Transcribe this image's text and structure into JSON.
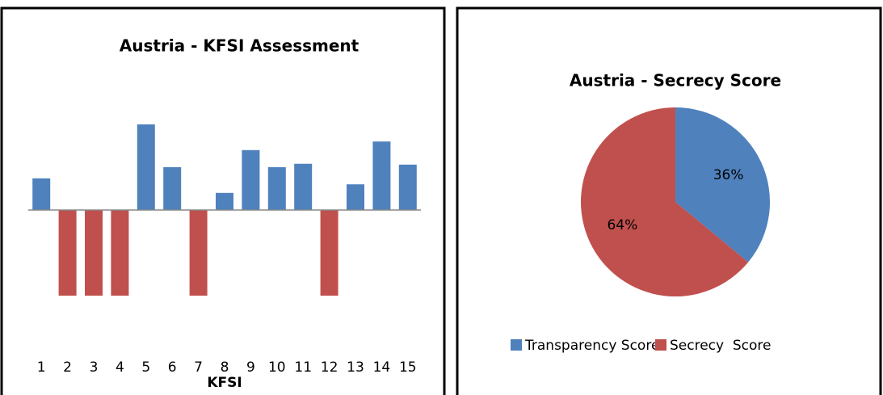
{
  "chart_data": [
    {
      "type": "bar",
      "title": "Austria - KFSI Assessment",
      "xlabel": "KFSI",
      "categories": [
        "1",
        "2",
        "3",
        "4",
        "5",
        "6",
        "7",
        "8",
        "9",
        "10",
        "11",
        "12",
        "13",
        "14",
        "15"
      ],
      "values": [
        0.37,
        -1,
        -1,
        -1,
        1,
        0.5,
        -1,
        0.2,
        0.7,
        0.5,
        0.54,
        -1,
        0.3,
        0.8,
        0.53
      ],
      "color": "#4f81bd",
      "negative_color": "#c0504d",
      "ylim": [
        -1.5,
        1.5
      ]
    },
    {
      "type": "pie",
      "title": "Austria - Secrecy Score",
      "categories": [
        "Transparency Score",
        "Secrecy  Score"
      ],
      "values": [
        36,
        64
      ],
      "value_labels": [
        "36%",
        "64%"
      ],
      "colors": [
        "#4f81bd",
        "#c0504d"
      ],
      "legend": "bottom"
    }
  ]
}
